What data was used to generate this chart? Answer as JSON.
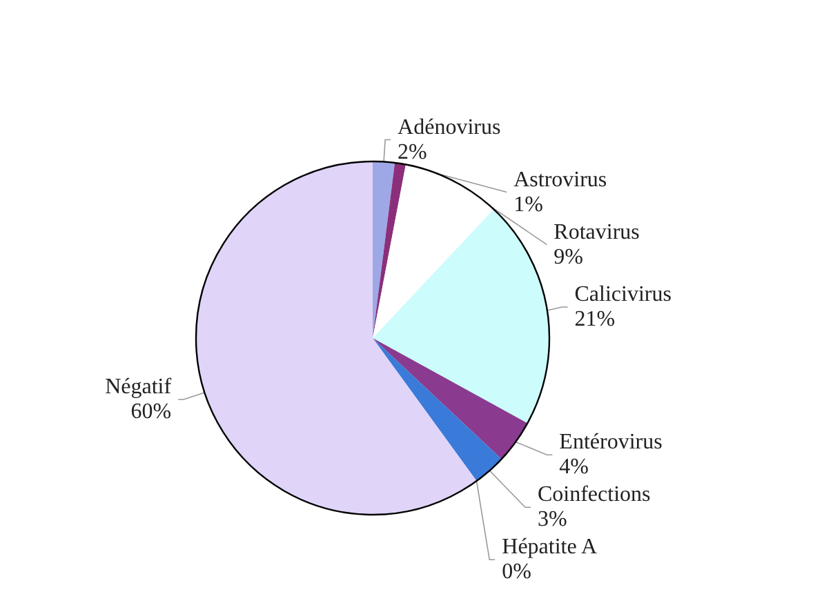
{
  "chart_data": {
    "type": "pie",
    "categories": [
      "Adénovirus",
      "Astrovirus",
      "Rotavirus",
      "Calicivirus",
      "Entérovirus",
      "Coinfections",
      "Hépatite A",
      "Négatif"
    ],
    "values": [
      2,
      1,
      9,
      21,
      4,
      3,
      0,
      60
    ],
    "colors": [
      "#9fa8e6",
      "#8b2f7a",
      "#ffffff",
      "#ccfcfc",
      "#8a3a8f",
      "#3a7ad8",
      "#c9a0dc",
      "#e0d4f8"
    ],
    "value_labels": [
      "2%",
      "1%",
      "9%",
      "21%",
      "4%",
      "3%",
      "0%",
      "60%"
    ]
  }
}
